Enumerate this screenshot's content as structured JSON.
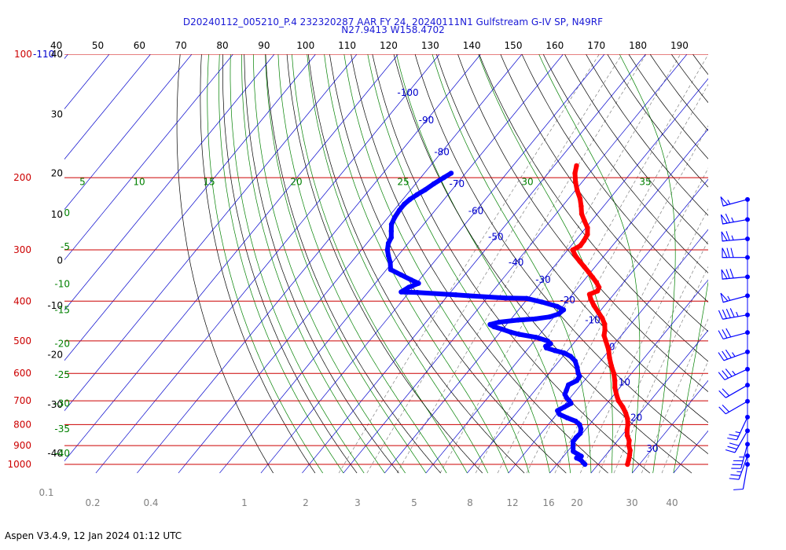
{
  "header": {
    "title_line1": "D20240112_005210_P.4 232320287 AAR FY 24, 20240111N1 Gulfstream G-IV SP, N49RF",
    "title_line2": "N27.9413 W158.4702"
  },
  "footer": {
    "text": "Aspen V3.4.9, 12 Jan 2024  01:12 UTC"
  },
  "chart_data": {
    "type": "line",
    "subtype": "skew-T log-P sounding",
    "title": "D20240112_005210_P.4 232320287 AAR FY 24, 20240111N1 Gulfstream G-IV SP, N49RF",
    "subtitle": "N27.9413 W158.4702",
    "colors": {
      "temperature": "#ff0000",
      "dewpoint": "#0000ff",
      "isobar": "#cc0000",
      "isotherm": "#0000cc",
      "dry_adiabat": "#000000",
      "moist_adiabat": "#008000",
      "mixing_ratio": "#808080",
      "wind_barb": "#0000ff"
    },
    "pressure_axis": {
      "ticks": [
        {
          "p": 1000,
          "label": "1000"
        },
        {
          "p": 900,
          "label": "900"
        },
        {
          "p": 800,
          "label": "800"
        },
        {
          "p": 700,
          "label": "700"
        },
        {
          "p": 600,
          "label": "600"
        },
        {
          "p": 500,
          "label": "500"
        },
        {
          "p": 400,
          "label": "400"
        },
        {
          "p": 300,
          "label": "300"
        },
        {
          "p": 200,
          "label": "200"
        },
        {
          "p": 100,
          "label": "100"
        }
      ],
      "top_suffix": "-110",
      "log_scale": true
    },
    "top_axis_labels": [
      "40",
      "50",
      "60",
      "70",
      "80",
      "90",
      "100",
      "110",
      "120",
      "130",
      "140",
      "150",
      "160",
      "170",
      "180",
      "190"
    ],
    "left_axis_labels": [
      {
        "p": 100,
        "label": "40"
      },
      {
        "p": 140,
        "label": "30"
      },
      {
        "p": 195,
        "label": "20"
      },
      {
        "p": 246,
        "label": "10"
      },
      {
        "p": 318,
        "label": "0"
      },
      {
        "p": 410,
        "label": "-10"
      },
      {
        "p": 540,
        "label": "-20"
      },
      {
        "p": 715,
        "label": "-30"
      },
      {
        "p": 940,
        "label": "-40"
      }
    ],
    "isotherm_labels": [
      {
        "t": -100,
        "p": 124
      },
      {
        "t": -90,
        "p": 145
      },
      {
        "t": -80,
        "p": 173
      },
      {
        "t": -70,
        "p": 207
      },
      {
        "t": -60,
        "p": 241
      },
      {
        "t": -50,
        "p": 279
      },
      {
        "t": -40,
        "p": 322
      },
      {
        "t": -30,
        "p": 355
      },
      {
        "t": -20,
        "p": 398
      },
      {
        "t": -10,
        "p": 445
      },
      {
        "t": 0,
        "p": 517
      },
      {
        "t": 10,
        "p": 630
      },
      {
        "t": 20,
        "p": 770
      },
      {
        "t": 30,
        "p": 915
      }
    ],
    "moist_adiabat_labels": [
      {
        "label": "5",
        "p": 205,
        "side": "top"
      },
      {
        "label": "10",
        "p": 205,
        "side": "top"
      },
      {
        "label": "15",
        "p": 205,
        "side": "top"
      },
      {
        "label": "20",
        "p": 205,
        "side": "top"
      },
      {
        "label": "25",
        "p": 205,
        "side": "top"
      },
      {
        "label": "30",
        "p": 205,
        "side": "top"
      },
      {
        "label": "35",
        "p": 205,
        "side": "top"
      },
      {
        "label": "0",
        "p": 244,
        "side": "left"
      },
      {
        "label": "-5",
        "p": 295,
        "side": "left"
      },
      {
        "label": "-10",
        "p": 363,
        "side": "left"
      },
      {
        "label": "-15",
        "p": 420,
        "side": "left"
      },
      {
        "label": "-20",
        "p": 508,
        "side": "left"
      },
      {
        "label": "-25",
        "p": 605,
        "side": "left"
      },
      {
        "label": "-30",
        "p": 710,
        "side": "left"
      },
      {
        "label": "-35",
        "p": 820,
        "side": "left"
      },
      {
        "label": "-40",
        "p": 940,
        "side": "left"
      }
    ],
    "mixing_ratio_labels": [
      "0.1",
      "0.2",
      "0.4",
      "1",
      "2",
      "3",
      "5",
      "8",
      "12",
      "16",
      "20",
      "30",
      "40"
    ],
    "temperature": [
      [
        1000,
        27.1
      ],
      [
        975,
        26.5
      ],
      [
        950,
        25.8
      ],
      [
        925,
        25.0
      ],
      [
        900,
        23.7
      ],
      [
        875,
        22.8
      ],
      [
        850,
        21.3
      ],
      [
        825,
        20.2
      ],
      [
        800,
        19.3
      ],
      [
        775,
        18.1
      ],
      [
        750,
        16.5
      ],
      [
        725,
        14.6
      ],
      [
        700,
        12.3
      ],
      [
        675,
        10.5
      ],
      [
        650,
        8.8
      ],
      [
        625,
        7.4
      ],
      [
        600,
        5.7
      ],
      [
        575,
        3.6
      ],
      [
        550,
        1.6
      ],
      [
        525,
        -0.3
      ],
      [
        500,
        -2.7
      ],
      [
        485,
        -4.2
      ],
      [
        470,
        -5.1
      ],
      [
        455,
        -6.3
      ],
      [
        440,
        -8.1
      ],
      [
        425,
        -10.3
      ],
      [
        410,
        -12.6
      ],
      [
        395,
        -14.7
      ],
      [
        385,
        -15.9
      ],
      [
        378,
        -14.6
      ],
      [
        370,
        -15.0
      ],
      [
        360,
        -16.6
      ],
      [
        350,
        -18.5
      ],
      [
        340,
        -20.5
      ],
      [
        330,
        -22.6
      ],
      [
        320,
        -24.8
      ],
      [
        310,
        -27.0
      ],
      [
        300,
        -28.8
      ],
      [
        293,
        -27.8
      ],
      [
        285,
        -27.9
      ],
      [
        275,
        -28.3
      ],
      [
        265,
        -29.6
      ],
      [
        255,
        -31.7
      ],
      [
        245,
        -33.8
      ],
      [
        235,
        -35.4
      ],
      [
        225,
        -37.2
      ],
      [
        215,
        -39.5
      ],
      [
        205,
        -41.6
      ],
      [
        195,
        -43.5
      ],
      [
        187,
        -44.6
      ]
    ],
    "dewpoint": [
      [
        1000,
        16.8
      ],
      [
        990,
        16.0
      ],
      [
        975,
        14.9
      ],
      [
        965,
        13.5
      ],
      [
        955,
        14.3
      ],
      [
        945,
        13.1
      ],
      [
        930,
        11.4
      ],
      [
        900,
        10.2
      ],
      [
        880,
        9.4
      ],
      [
        860,
        9.3
      ],
      [
        840,
        9.5
      ],
      [
        820,
        8.8
      ],
      [
        800,
        7.6
      ],
      [
        785,
        6.0
      ],
      [
        770,
        3.2
      ],
      [
        755,
        0.7
      ],
      [
        740,
        -0.5
      ],
      [
        725,
        0.4
      ],
      [
        710,
        1.3
      ],
      [
        700,
        0.4
      ],
      [
        690,
        -0.7
      ],
      [
        675,
        -2.0
      ],
      [
        660,
        -2.4
      ],
      [
        640,
        -3.0
      ],
      [
        625,
        -1.8
      ],
      [
        610,
        -2.0
      ],
      [
        600,
        -2.9
      ],
      [
        580,
        -4.4
      ],
      [
        560,
        -6.1
      ],
      [
        545,
        -8.2
      ],
      [
        535,
        -10.4
      ],
      [
        528,
        -13.1
      ],
      [
        520,
        -15.7
      ],
      [
        515,
        -16.2
      ],
      [
        508,
        -15.5
      ],
      [
        500,
        -16.8
      ],
      [
        490,
        -20.3
      ],
      [
        482,
        -25.0
      ],
      [
        476,
        -27.5
      ],
      [
        468,
        -30.2
      ],
      [
        462,
        -32.6
      ],
      [
        456,
        -34.0
      ],
      [
        450,
        -32.3
      ],
      [
        445,
        -28.1
      ],
      [
        442,
        -24.2
      ],
      [
        437,
        -21.1
      ],
      [
        430,
        -19.5
      ],
      [
        420,
        -19.1
      ],
      [
        412,
        -21.3
      ],
      [
        402,
        -25.9
      ],
      [
        394,
        -30.3
      ],
      [
        393,
        -35.5
      ],
      [
        388,
        -45.0
      ],
      [
        386,
        -48.2
      ],
      [
        381,
        -58.0
      ],
      [
        380,
        -62.0
      ],
      [
        370,
        -61.1
      ],
      [
        362,
        -59.5
      ],
      [
        355,
        -62.0
      ],
      [
        345,
        -65.5
      ],
      [
        335,
        -69.0
      ],
      [
        322,
        -70.5
      ],
      [
        310,
        -72.3
      ],
      [
        300,
        -73.7
      ],
      [
        289,
        -74.8
      ],
      [
        280,
        -75.2
      ],
      [
        270,
        -76.5
      ],
      [
        260,
        -77.8
      ],
      [
        250,
        -78.4
      ],
      [
        240,
        -78.7
      ],
      [
        232,
        -78.7
      ],
      [
        226,
        -78.3
      ],
      [
        220,
        -77.5
      ],
      [
        214,
        -76.5
      ],
      [
        207,
        -75.6
      ],
      [
        200,
        -74.4
      ],
      [
        195,
        -73.5
      ]
    ],
    "winds": [
      {
        "p": 1000,
        "dir": 190,
        "spd": 10
      },
      {
        "p": 953,
        "dir": 200,
        "spd": 25
      },
      {
        "p": 893,
        "dir": 195,
        "spd": 35
      },
      {
        "p": 828,
        "dir": 210,
        "spd": 30
      },
      {
        "p": 767,
        "dir": 205,
        "spd": 25
      },
      {
        "p": 702,
        "dir": 240,
        "spd": 20
      },
      {
        "p": 641,
        "dir": 240,
        "spd": 20
      },
      {
        "p": 586,
        "dir": 245,
        "spd": 35
      },
      {
        "p": 532,
        "dir": 250,
        "spd": 35
      },
      {
        "p": 477,
        "dir": 255,
        "spd": 30
      },
      {
        "p": 432,
        "dir": 260,
        "spd": 45
      },
      {
        "p": 388,
        "dir": 255,
        "spd": 55
      },
      {
        "p": 349,
        "dir": 265,
        "spd": 70
      },
      {
        "p": 313,
        "dir": 270,
        "spd": 70
      },
      {
        "p": 282,
        "dir": 265,
        "spd": 65
      },
      {
        "p": 253,
        "dir": 260,
        "spd": 65
      },
      {
        "p": 226,
        "dir": 255,
        "spd": 55
      }
    ]
  }
}
